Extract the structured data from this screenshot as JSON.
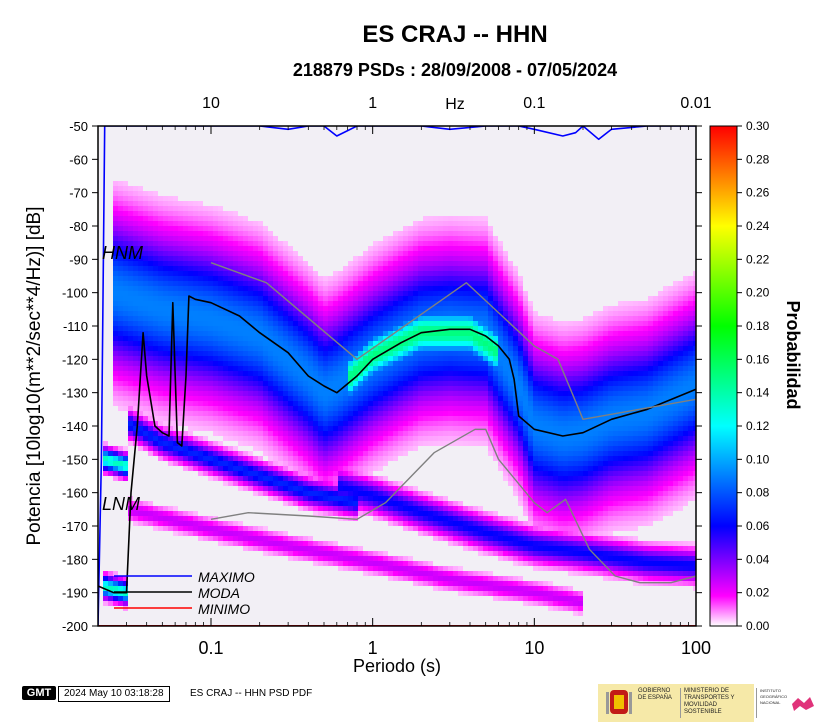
{
  "chart_data": {
    "type": "heatmap",
    "title": "ES CRAJ -- HHN",
    "subtitle": "218879 PSDs : 28/09/2008 - 07/05/2024",
    "xlabel": "Periodo (s)",
    "x2label": "Hz",
    "ylabel": "Potencia [10log10(m**2/sec**4/Hz)] [dB]",
    "xscale": "log",
    "xlim": [
      0.02,
      100
    ],
    "ylim": [
      -200,
      -50
    ],
    "x_ticks": [
      0.1,
      1,
      10,
      100
    ],
    "x_tick_labels": [
      "0.1",
      "1",
      "10",
      "100"
    ],
    "x2_ticks": [
      10,
      1,
      0.1,
      0.01
    ],
    "x2_tick_labels": [
      "10",
      "1",
      "0.1",
      "0.01"
    ],
    "y_ticks": [
      -50,
      -60,
      -70,
      -80,
      -90,
      -100,
      -110,
      -120,
      -130,
      -140,
      -150,
      -160,
      -170,
      -180,
      -190,
      -200
    ],
    "y_tick_labels": [
      "-50",
      "-60",
      "-70",
      "-80",
      "-90",
      "-100",
      "-110",
      "-120",
      "-130",
      "-140",
      "-150",
      "-160",
      "-170",
      "-180",
      "-190",
      "-200"
    ],
    "colorbar": {
      "label": "Probabilidad",
      "range": [
        0,
        0.3
      ],
      "ticks": [
        0.0,
        0.02,
        0.04,
        0.06,
        0.08,
        0.1,
        0.12,
        0.14,
        0.16,
        0.18,
        0.2,
        0.22,
        0.24,
        0.26,
        0.28,
        0.3
      ],
      "tick_labels": [
        "0.00",
        "0.02",
        "0.04",
        "0.06",
        "0.08",
        "0.10",
        "0.12",
        "0.14",
        "0.16",
        "0.18",
        "0.20",
        "0.22",
        "0.24",
        "0.26",
        "0.28",
        "0.30"
      ],
      "colors": [
        "#ffffff",
        "#ff00ff",
        "#0000ff",
        "#00ffff",
        "#00ff00",
        "#ffff00",
        "#ff0000"
      ]
    },
    "annotations": [
      "HNM",
      "LNM"
    ],
    "legend": {
      "placement": "bottom-left",
      "entries": [
        {
          "label": "MAXIMO",
          "color": "#0000ff"
        },
        {
          "label": "MODA",
          "color": "#000000"
        },
        {
          "label": "MINIMO",
          "color": "#ff0000"
        }
      ]
    },
    "density_ridges": [
      {
        "name": "main",
        "points": [
          [
            0.025,
            -100
          ],
          [
            0.05,
            -105
          ],
          [
            0.1,
            -108
          ],
          [
            0.2,
            -113
          ],
          [
            0.4,
            -125
          ],
          [
            0.5,
            -130
          ],
          [
            0.6,
            -128
          ],
          [
            1,
            -120
          ],
          [
            1.5,
            -115
          ],
          [
            2,
            -112
          ],
          [
            3,
            -111
          ],
          [
            5,
            -112
          ],
          [
            8,
            -128
          ],
          [
            10,
            -140
          ],
          [
            15,
            -143
          ],
          [
            20,
            -142
          ],
          [
            30,
            -138
          ],
          [
            50,
            -136
          ],
          [
            100,
            -128
          ]
        ],
        "width": 14,
        "strength": 0.6
      },
      {
        "name": "core",
        "points": [
          [
            0.7,
            -126
          ],
          [
            1,
            -119
          ],
          [
            2,
            -112
          ],
          [
            4,
            -112
          ],
          [
            6,
            -118
          ]
        ],
        "width": 5,
        "strength": 1.0
      },
      {
        "name": "band-a",
        "points": [
          [
            0.03,
            -139
          ],
          [
            0.05,
            -145
          ],
          [
            0.1,
            -150
          ],
          [
            0.2,
            -155
          ],
          [
            0.4,
            -160
          ],
          [
            0.8,
            -163
          ]
        ],
        "width": 2.5,
        "strength": 0.45
      },
      {
        "name": "band-b",
        "points": [
          [
            0.6,
            -158
          ],
          [
            1,
            -161
          ],
          [
            2,
            -166
          ],
          [
            5,
            -172
          ],
          [
            10,
            -176
          ],
          [
            20,
            -178
          ],
          [
            50,
            -181
          ],
          [
            100,
            -182
          ]
        ],
        "width": 3,
        "strength": 0.4
      },
      {
        "name": "band-c",
        "points": [
          [
            0.03,
            -165
          ],
          [
            0.1,
            -171
          ],
          [
            0.3,
            -176
          ],
          [
            1,
            -181
          ],
          [
            3,
            -186
          ],
          [
            10,
            -190
          ],
          [
            20,
            -193
          ]
        ],
        "width": 2,
        "strength": 0.18
      },
      {
        "name": "cluster-upper",
        "points": [
          [
            0.022,
            -150
          ],
          [
            0.03,
            -152
          ]
        ],
        "width": 2,
        "strength": 0.9
      },
      {
        "name": "cluster-lower",
        "points": [
          [
            0.021,
            -188
          ],
          [
            0.03,
            -190
          ]
        ],
        "width": 2,
        "strength": 0.9
      }
    ],
    "series": [
      {
        "name": "MAXIMO",
        "color": "#0000ff",
        "x": [
          0.02,
          0.021,
          0.022,
          0.03,
          0.05,
          0.1,
          0.2,
          0.3,
          0.4,
          0.5,
          0.6,
          0.8,
          1,
          2,
          3,
          5,
          8,
          10,
          15,
          18,
          20,
          25,
          30,
          50,
          100
        ],
        "y": [
          -200,
          -150,
          -50,
          -50,
          -50,
          -50,
          -50,
          -51,
          -50,
          -50,
          -53,
          -50,
          -50,
          -50,
          -51,
          -50,
          -50,
          -51,
          -53,
          -52,
          -50,
          -54,
          -51,
          -50,
          -50
        ]
      },
      {
        "name": "MODA",
        "color": "#000000",
        "x": [
          0.02,
          0.025,
          0.03,
          0.032,
          0.035,
          0.038,
          0.04,
          0.045,
          0.05,
          0.055,
          0.058,
          0.062,
          0.066,
          0.07,
          0.073,
          0.08,
          0.1,
          0.15,
          0.2,
          0.3,
          0.4,
          0.5,
          0.6,
          0.8,
          1,
          1.5,
          2,
          3,
          4,
          5,
          6,
          7,
          7.5,
          8,
          10,
          15,
          20,
          30,
          50,
          100
        ],
        "y": [
          -188,
          -190,
          -190,
          -160,
          -140,
          -112,
          -125,
          -140,
          -142,
          -143,
          -103,
          -145,
          -146,
          -125,
          -101,
          -102,
          -103,
          -107,
          -112,
          -118,
          -125,
          -128,
          -130,
          -125,
          -120,
          -115,
          -112,
          -111,
          -111,
          -113,
          -116,
          -120,
          -126,
          -137,
          -141,
          -143,
          -142,
          -138,
          -135,
          -129
        ]
      },
      {
        "name": "MINIMO",
        "color": "#ff0000",
        "x": [
          0.02,
          100
        ],
        "y": [
          -200,
          -200
        ]
      },
      {
        "name": "HNM",
        "color": "#808080",
        "x": [
          0.1,
          0.22,
          0.8,
          3.8,
          10,
          14,
          20,
          100
        ],
        "y": [
          -91,
          -97,
          -120,
          -97,
          -116,
          -120,
          -138,
          -132
        ]
      },
      {
        "name": "LNM",
        "color": "#808080",
        "x": [
          0.1,
          0.17,
          0.4,
          0.8,
          1.2,
          2.4,
          4.3,
          5,
          6,
          10,
          12,
          15.6,
          21.9,
          31.6,
          45,
          70,
          100
        ],
        "y": [
          -168,
          -166,
          -167,
          -168,
          -163,
          -148,
          -141,
          -141,
          -150,
          -163,
          -166,
          -162,
          -177,
          -185,
          -187,
          -187,
          -185
        ]
      }
    ]
  },
  "footer": {
    "gmt_label": "GMT",
    "timestamp": "2024 May 10 03:18:28",
    "description": "ES CRAJ -- HHN PSD PDF",
    "logo1": "GOBIERNO DE ESPAÑA",
    "logo2": "MINISTERIO DE TRANSPORTES Y MOVILIDAD SOSTENIBLE",
    "logo3": "INSTITUTO GEOGRÁFICO NACIONAL"
  }
}
